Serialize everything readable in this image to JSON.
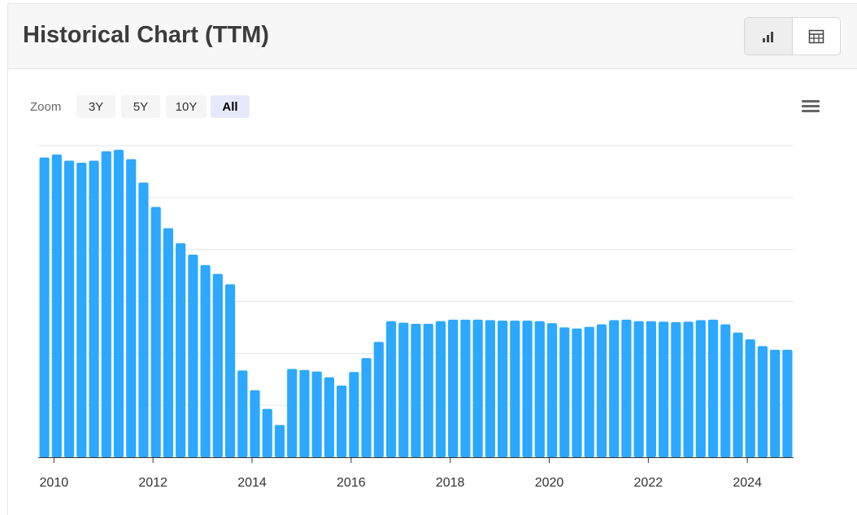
{
  "header": {
    "title": "Historical Chart (TTM)"
  },
  "view_toggle": {
    "active": "chart",
    "icons": [
      "bar-chart-icon",
      "table-icon"
    ]
  },
  "zoom": {
    "label": "Zoom",
    "options": [
      "3Y",
      "5Y",
      "10Y",
      "All"
    ],
    "selected": "All"
  },
  "menu": {
    "icon": "hamburger-menu-icon"
  },
  "colors": {
    "bar": "#2ca8ff",
    "grid": "#e6e6e6",
    "axis": "#333333"
  },
  "chart_data": {
    "type": "bar",
    "title": "",
    "xlabel": "",
    "ylabel": "",
    "x_tick_labels": [
      "2010",
      "2012",
      "2014",
      "2016",
      "2018",
      "2020",
      "2022",
      "2024"
    ],
    "x_range": [
      "2009-12",
      "2025-03"
    ],
    "y_range": [
      0,
      6
    ],
    "y_tick_labels_shown": false,
    "grid": true,
    "legend": "none",
    "periods": [
      "2009-12",
      "2010-03",
      "2010-06",
      "2010-09",
      "2010-12",
      "2011-03",
      "2011-06",
      "2011-09",
      "2011-12",
      "2012-03",
      "2012-06",
      "2012-09",
      "2012-12",
      "2013-03",
      "2013-06",
      "2013-09",
      "2013-12",
      "2014-03",
      "2014-06",
      "2014-09",
      "2014-12",
      "2015-03",
      "2015-06",
      "2015-09",
      "2015-12",
      "2016-03",
      "2016-06",
      "2016-09",
      "2016-12",
      "2017-03",
      "2017-06",
      "2017-09",
      "2017-12",
      "2018-03",
      "2018-06",
      "2018-09",
      "2018-12",
      "2019-03",
      "2019-06",
      "2019-09",
      "2019-12",
      "2020-03",
      "2020-06",
      "2020-09",
      "2020-12",
      "2021-03",
      "2021-06",
      "2021-09",
      "2021-12",
      "2022-03",
      "2022-06",
      "2022-09",
      "2022-12",
      "2023-03",
      "2023-06",
      "2023-09",
      "2023-12",
      "2024-03",
      "2024-06",
      "2024-09",
      "2024-12"
    ],
    "values": [
      5.77,
      5.83,
      5.71,
      5.67,
      5.71,
      5.89,
      5.92,
      5.74,
      5.29,
      4.82,
      4.41,
      4.12,
      3.9,
      3.7,
      3.53,
      3.33,
      1.67,
      1.29,
      0.93,
      0.62,
      1.7,
      1.68,
      1.65,
      1.54,
      1.38,
      1.64,
      1.91,
      2.22,
      2.62,
      2.59,
      2.57,
      2.57,
      2.62,
      2.65,
      2.65,
      2.65,
      2.64,
      2.63,
      2.63,
      2.63,
      2.62,
      2.58,
      2.5,
      2.48,
      2.51,
      2.56,
      2.64,
      2.65,
      2.62,
      2.62,
      2.61,
      2.6,
      2.61,
      2.64,
      2.65,
      2.56,
      2.4,
      2.27,
      2.14,
      2.07,
      2.07
    ]
  }
}
